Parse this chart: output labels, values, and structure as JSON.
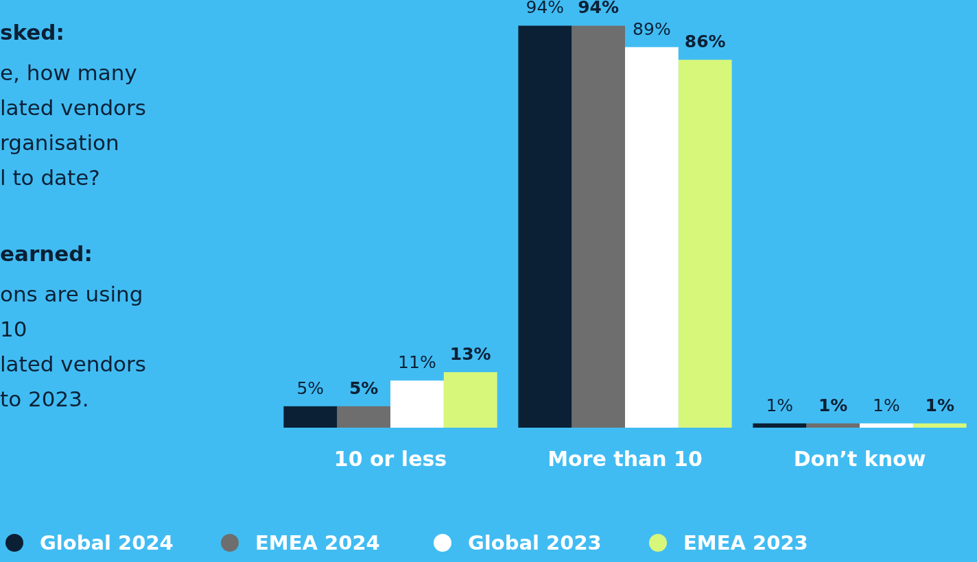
{
  "chart_data": {
    "type": "bar",
    "categories": [
      "10 or less",
      "More than 10",
      "Don’t know"
    ],
    "series": [
      {
        "name": "Global 2024",
        "color": "#0b2035",
        "values": [
          5,
          94,
          1
        ],
        "value_labels": [
          "5%",
          "94%",
          "1%"
        ]
      },
      {
        "name": "EMEA 2024",
        "color": "#6e6e6e",
        "values": [
          5,
          94,
          1
        ],
        "value_labels": [
          "5%",
          "94%",
          "1%"
        ]
      },
      {
        "name": "Global 2023",
        "color": "#ffffff",
        "values": [
          11,
          89,
          1
        ],
        "value_labels": [
          "11%",
          "89%",
          "1%"
        ]
      },
      {
        "name": "EMEA 2023",
        "color": "#d7f77a",
        "values": [
          13,
          86,
          1
        ],
        "value_labels": [
          "13%",
          "86%",
          "1%"
        ]
      }
    ],
    "legend": "bottom",
    "grid": false,
    "tick_labels": "x",
    "annotations": [
      "sked:",
      "e, how many\nlated vendors\nrganisation\nl to date?",
      "earned:",
      "ons are using\n10\nlated vendors\nto 2023."
    ]
  }
}
